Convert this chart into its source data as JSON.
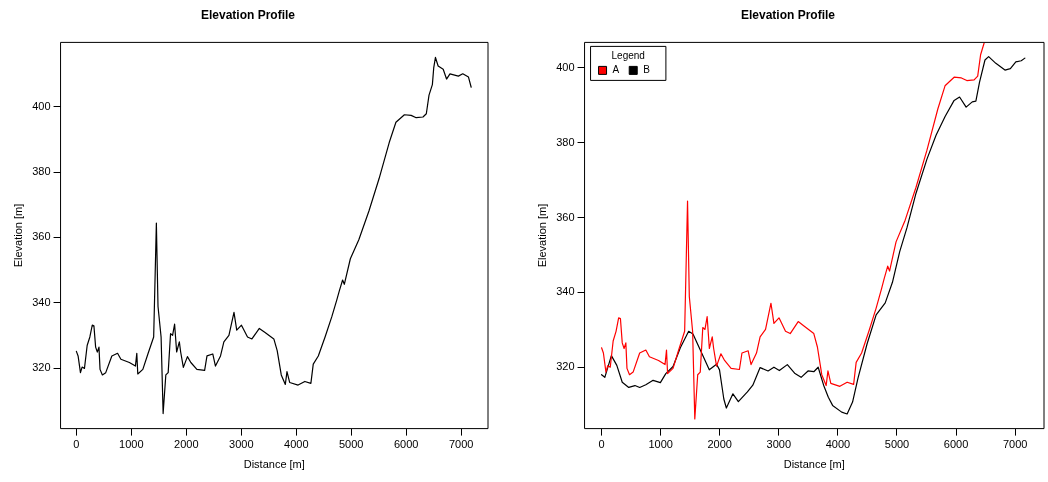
{
  "chart_data": [
    {
      "type": "line",
      "title": "Elevation Profile",
      "xlabel": "Distance [m]",
      "ylabel": "Elevation [m]",
      "xlim": [
        -288,
        7488
      ],
      "ylim": [
        301.6,
        419.6
      ],
      "xticks": [
        0,
        1000,
        2000,
        3000,
        4000,
        5000,
        6000,
        7000
      ],
      "yticks": [
        320,
        340,
        360,
        380,
        400
      ],
      "grid": false,
      "legend": false,
      "marker": "none",
      "line_style": "solid",
      "series": [
        {
          "color": "#000000",
          "x": [
            0,
            31,
            74,
            104,
            147,
            196,
            245,
            289,
            319,
            350,
            381,
            411,
            430,
            473,
            534,
            645,
            749,
            810,
            964,
            1074,
            1099,
            1117,
            1209,
            1301,
            1406,
            1455,
            1485,
            1541,
            1578,
            1627,
            1670,
            1713,
            1750,
            1787,
            1824,
            1873,
            1897,
            1946,
            2020,
            2082,
            2192,
            2333,
            2376,
            2481,
            2530,
            2622,
            2683,
            2775,
            2867,
            2917,
            3003,
            3113,
            3193,
            3328,
            3420,
            3592,
            3653,
            3727,
            3801,
            3831,
            3880,
            4033,
            4156,
            4266,
            4309,
            4401,
            4524,
            4647,
            4739,
            4782,
            4843,
            4874,
            4984,
            5138,
            5322,
            5507,
            5691,
            5813,
            5967,
            6090,
            6182,
            6305,
            6366,
            6415,
            6476,
            6501,
            6532,
            6581,
            6673,
            6734,
            6796,
            6949,
            7029,
            7133,
            7182
          ],
          "values": [
            325.2,
            323.8,
            318.7,
            320.4,
            320.0,
            327.0,
            329.6,
            333.2,
            333.0,
            326.5,
            325.0,
            326.5,
            319.7,
            318.0,
            318.7,
            323.8,
            324.6,
            322.8,
            321.8,
            320.7,
            324.6,
            318.3,
            319.7,
            324.4,
            329.6,
            364.4,
            338.9,
            329.6,
            306.2,
            318.0,
            318.7,
            330.6,
            330.1,
            333.5,
            325.0,
            328.1,
            325.0,
            320.3,
            323.6,
            321.8,
            319.7,
            319.4,
            323.8,
            324.4,
            320.7,
            323.8,
            328.1,
            330.1,
            337.1,
            331.7,
            333.2,
            329.6,
            329.0,
            332.2,
            331.1,
            329.0,
            325.4,
            318.0,
            315.1,
            319.0,
            315.7,
            314.9,
            316.0,
            315.4,
            321.3,
            323.8,
            329.6,
            335.8,
            341.0,
            343.6,
            347.0,
            345.7,
            353.5,
            359.3,
            368.1,
            378.0,
            389.0,
            395.2,
            397.5,
            397.3,
            396.6,
            396.8,
            397.8,
            403.5,
            406.7,
            411.9,
            415.0,
            412.4,
            411.4,
            408.4,
            410.0,
            409.3,
            410.0,
            409.0,
            405.9
          ]
        }
      ]
    },
    {
      "type": "line",
      "title": "Elevation Profile",
      "xlabel": "Distance [m]",
      "ylabel": "Elevation [m]",
      "xlim": [
        -288,
        7488
      ],
      "ylim": [
        303.6,
        406.8
      ],
      "xticks": [
        0,
        1000,
        2000,
        3000,
        4000,
        5000,
        6000,
        7000
      ],
      "yticks": [
        320,
        340,
        360,
        380,
        400
      ],
      "grid": false,
      "legend": "top left",
      "legend_title": "Legend",
      "marker": "none",
      "line_style": "solid",
      "series": [
        {
          "name": "A",
          "color": "#ff0000",
          "x": [
            0,
            31,
            74,
            104,
            147,
            196,
            245,
            289,
            319,
            350,
            381,
            411,
            430,
            473,
            534,
            645,
            749,
            810,
            964,
            1074,
            1099,
            1117,
            1209,
            1301,
            1406,
            1455,
            1485,
            1541,
            1578,
            1627,
            1670,
            1713,
            1750,
            1787,
            1824,
            1873,
            1897,
            1946,
            2020,
            2082,
            2192,
            2333,
            2376,
            2481,
            2530,
            2622,
            2683,
            2775,
            2867,
            2917,
            3003,
            3113,
            3193,
            3328,
            3420,
            3592,
            3653,
            3727,
            3801,
            3831,
            3880,
            4033,
            4156,
            4266,
            4309,
            4401,
            4524,
            4647,
            4739,
            4782,
            4843,
            4874,
            4984,
            5138,
            5322,
            5507,
            5691,
            5813,
            5967,
            6090,
            6182,
            6305,
            6366,
            6415,
            6476
          ],
          "values": [
            325.2,
            323.8,
            318.7,
            320.4,
            320.0,
            327.0,
            329.6,
            333.2,
            333.0,
            326.5,
            325.0,
            326.5,
            319.7,
            318.0,
            318.7,
            323.8,
            324.6,
            322.8,
            321.8,
            320.7,
            324.6,
            318.3,
            319.7,
            324.4,
            329.6,
            364.4,
            338.9,
            329.6,
            306.2,
            318.0,
            318.7,
            330.6,
            330.1,
            333.5,
            325.0,
            328.1,
            325.0,
            320.3,
            323.6,
            321.8,
            319.7,
            319.4,
            323.8,
            324.4,
            320.7,
            323.8,
            328.1,
            330.1,
            337.1,
            331.7,
            333.2,
            329.6,
            329.0,
            332.2,
            331.1,
            329.0,
            325.4,
            318.0,
            315.1,
            319.0,
            315.7,
            314.9,
            316.0,
            315.4,
            321.3,
            323.8,
            329.6,
            335.8,
            341.0,
            343.6,
            347.0,
            345.7,
            353.5,
            359.3,
            368.1,
            378.0,
            389.0,
            395.2,
            397.5,
            397.3,
            396.6,
            396.8,
            397.8,
            403.5,
            406.7
          ]
        },
        {
          "name": "B",
          "color": "#000000",
          "x": [
            0,
            55,
            166,
            258,
            350,
            460,
            565,
            645,
            749,
            872,
            995,
            1087,
            1210,
            1333,
            1474,
            1547,
            1700,
            1823,
            1946,
            1996,
            2069,
            2112,
            2223,
            2315,
            2468,
            2560,
            2683,
            2818,
            2917,
            3009,
            3144,
            3267,
            3377,
            3494,
            3592,
            3666,
            3758,
            3838,
            3910,
            4064,
            4156,
            4248,
            4340,
            4493,
            4647,
            4801,
            4923,
            5046,
            5169,
            5322,
            5507,
            5661,
            5814,
            5967,
            6059,
            6170,
            6274,
            6335,
            6397,
            6489,
            6551,
            6673,
            6827,
            6919,
            7011,
            7103,
            7164
          ],
          "values": [
            318.0,
            317.3,
            323.1,
            320.5,
            316.0,
            314.6,
            315.1,
            314.6,
            315.3,
            316.5,
            315.9,
            318.3,
            320.2,
            325.2,
            329.6,
            328.9,
            323.6,
            319.3,
            320.8,
            319.3,
            311.5,
            309.1,
            312.9,
            310.8,
            313.4,
            315.2,
            319.9,
            319.0,
            320.0,
            319.1,
            320.7,
            318.4,
            317.3,
            319.0,
            318.8,
            320.0,
            315.2,
            312.0,
            309.8,
            308.0,
            307.5,
            310.7,
            317.1,
            326.2,
            334.0,
            337.2,
            342.7,
            350.9,
            357.3,
            366.5,
            375.6,
            382.0,
            387.0,
            391.3,
            392.2,
            389.5,
            390.9,
            391.1,
            396.2,
            402.1,
            403.0,
            401.2,
            399.4,
            399.8,
            401.6,
            401.9,
            402.6
          ]
        }
      ]
    }
  ]
}
